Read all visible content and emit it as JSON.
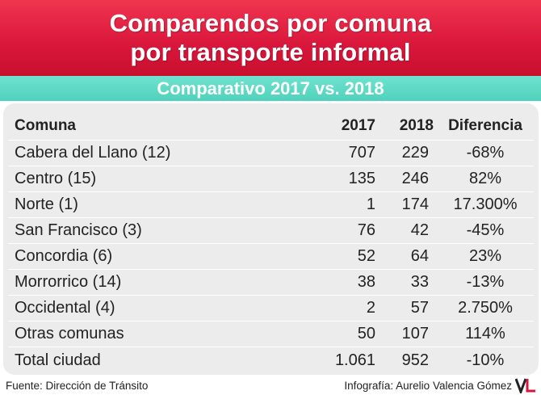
{
  "title": {
    "line1": "Comparendos por comuna",
    "line2": "por transporte informal"
  },
  "subtitle": "Comparativo 2017 vs. 2018",
  "colors": {
    "title_bg": "#d9163b",
    "subtitle_bg": "#4fd1bb",
    "table_bg": "#ececec"
  },
  "chart_data": {
    "type": "table",
    "columns": [
      "Comuna",
      "2017",
      "2018",
      "Diferencia"
    ],
    "rows": [
      [
        "Cabera del Llano (12)",
        "707",
        "229",
        "-68%"
      ],
      [
        "Centro (15)",
        "135",
        "246",
        "82%"
      ],
      [
        "Norte (1)",
        "1",
        "174",
        "17.300%"
      ],
      [
        "San Francisco (3)",
        "76",
        "42",
        "-45%"
      ],
      [
        "Concordia (6)",
        "52",
        "64",
        "23%"
      ],
      [
        "Morrorrico (14)",
        "38",
        "33",
        "-13%"
      ],
      [
        "Occidental (4)",
        "2",
        "57",
        "2.750%"
      ],
      [
        "Otras comunas",
        "50",
        "107",
        "114%"
      ],
      [
        "Total ciudad",
        "1.061",
        "952",
        "-10%"
      ]
    ]
  },
  "footer": {
    "source": "Fuente: Dirección de Tránsito",
    "credit": "Infografía: Aurelio Valencia Gómez",
    "logo_icon": "vl-logo-icon"
  }
}
